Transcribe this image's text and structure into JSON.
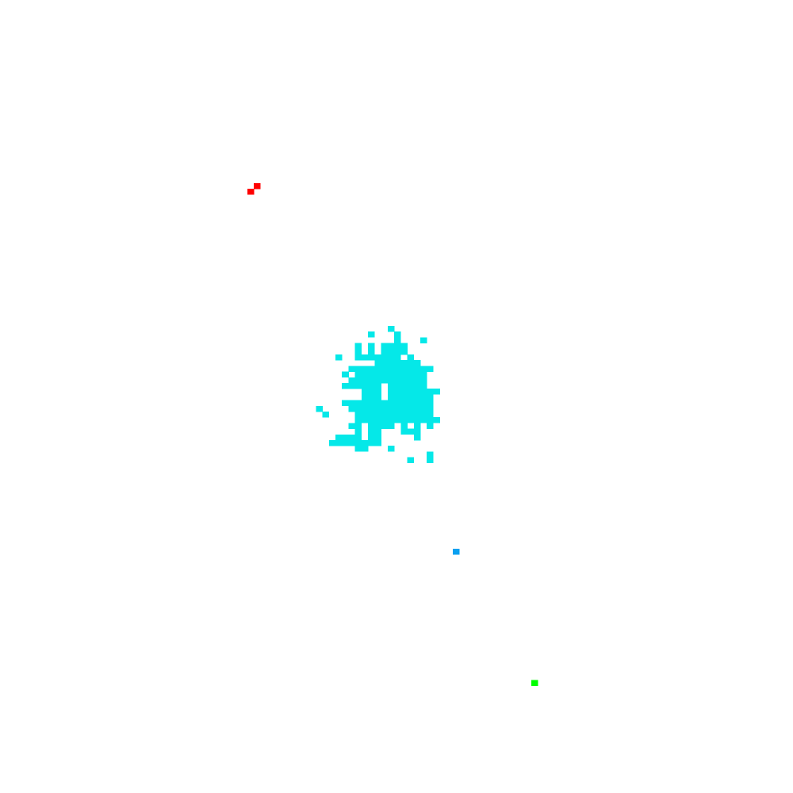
{
  "chart_data": {
    "type": "heatmap",
    "grid": "on-cells",
    "colors": {
      "cluster": "#05E8E8",
      "red": "#FF0000",
      "blue": "#0AA0F0",
      "green": "#00FF00"
    },
    "clusters": [
      {
        "color_key": "cluster",
        "row_spans": [
          {
            "row": 57,
            "spans": [
              [
                59,
                59
              ]
            ]
          },
          {
            "row": 58,
            "spans": [
              [
                56,
                56
              ],
              [
                60,
                60
              ]
            ]
          },
          {
            "row": 59,
            "spans": [
              [
                60,
                60
              ],
              [
                64,
                64
              ]
            ]
          },
          {
            "row": 60,
            "spans": [
              [
                54,
                54
              ],
              [
                56,
                56
              ],
              [
                58,
                61
              ]
            ]
          },
          {
            "row": 61,
            "spans": [
              [
                54,
                54
              ],
              [
                56,
                56
              ],
              [
                58,
                61
              ]
            ]
          },
          {
            "row": 62,
            "spans": [
              [
                51,
                51
              ],
              [
                54,
                60
              ],
              [
                62,
                62
              ]
            ]
          },
          {
            "row": 63,
            "spans": [
              [
                57,
                63
              ]
            ]
          },
          {
            "row": 64,
            "spans": [
              [
                53,
                65
              ]
            ]
          },
          {
            "row": 65,
            "spans": [
              [
                52,
                52
              ],
              [
                54,
                64
              ]
            ]
          },
          {
            "row": 66,
            "spans": [
              [
                53,
                64
              ]
            ]
          },
          {
            "row": 67,
            "spans": [
              [
                52,
                57
              ],
              [
                59,
                64
              ]
            ]
          },
          {
            "row": 68,
            "spans": [
              [
                55,
                57
              ],
              [
                59,
                66
              ]
            ]
          },
          {
            "row": 69,
            "spans": [
              [
                55,
                57
              ],
              [
                59,
                65
              ]
            ]
          },
          {
            "row": 70,
            "spans": [
              [
                52,
                65
              ]
            ]
          },
          {
            "row": 71,
            "spans": [
              [
                48,
                48
              ],
              [
                53,
                65
              ]
            ]
          },
          {
            "row": 72,
            "spans": [
              [
                49,
                49
              ],
              [
                54,
                65
              ]
            ]
          },
          {
            "row": 73,
            "spans": [
              [
                54,
                66
              ]
            ]
          },
          {
            "row": 74,
            "spans": [
              [
                53,
                54
              ],
              [
                56,
                59
              ],
              [
                61,
                61
              ],
              [
                63,
                63
              ],
              [
                65,
                65
              ]
            ]
          },
          {
            "row": 75,
            "spans": [
              [
                54,
                54
              ],
              [
                56,
                57
              ],
              [
                61,
                63
              ]
            ]
          },
          {
            "row": 76,
            "spans": [
              [
                51,
                54
              ],
              [
                56,
                57
              ],
              [
                63,
                63
              ]
            ]
          },
          {
            "row": 77,
            "spans": [
              [
                50,
                57
              ]
            ]
          },
          {
            "row": 78,
            "spans": [
              [
                54,
                55
              ],
              [
                59,
                59
              ]
            ]
          },
          {
            "row": 79,
            "spans": [
              [
                65,
                65
              ]
            ]
          },
          {
            "row": 80,
            "spans": [
              [
                62,
                62
              ],
              [
                65,
                65
              ]
            ]
          }
        ]
      },
      {
        "color_key": "red",
        "row_spans": [
          {
            "row": 32,
            "spans": [
              [
                38.5,
                38.5
              ]
            ]
          },
          {
            "row": 33,
            "spans": [
              [
                37.5,
                37.5
              ]
            ]
          }
        ]
      },
      {
        "color_key": "blue",
        "row_spans": [
          {
            "row": 96,
            "spans": [
              [
                69,
                69
              ]
            ]
          }
        ]
      },
      {
        "color_key": "green",
        "row_spans": [
          {
            "row": 119,
            "spans": [
              [
                81,
                81
              ]
            ]
          }
        ]
      }
    ]
  }
}
